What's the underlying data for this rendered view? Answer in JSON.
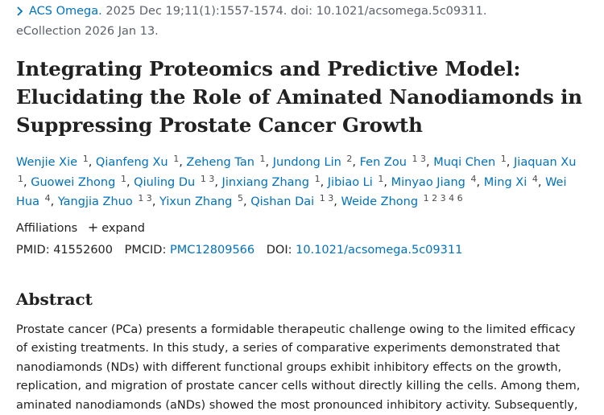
{
  "citation": {
    "journal": "ACS Omega.",
    "line1_rest": " 2025 Dec 19;11(1):1557-1574. doi: 10.1021/acsomega.5c09311.",
    "line2": "eCollection 2026 Jan 13."
  },
  "title": "Integrating Proteomics and Predictive Model: Elucidating the Role of Aminated Nanodiamonds in Suppressing Prostate Cancer Growth",
  "authors": [
    {
      "name": "Wenjie Xie",
      "sup": "1"
    },
    {
      "name": "Qianfeng Xu",
      "sup": "1"
    },
    {
      "name": "Zeheng Tan",
      "sup": "1"
    },
    {
      "name": "Jundong Lin",
      "sup": "2"
    },
    {
      "name": "Fen Zou",
      "sup": "1 3"
    },
    {
      "name": "Muqi Chen",
      "sup": "1"
    },
    {
      "name": "Jiaquan Xu",
      "sup": "1"
    },
    {
      "name": "Guowei Zhong",
      "sup": "1"
    },
    {
      "name": "Qiuling Du",
      "sup": "1 3"
    },
    {
      "name": "Jinxiang Zhang",
      "sup": "1"
    },
    {
      "name": "Jibiao Li",
      "sup": "1"
    },
    {
      "name": "Minyao Jiang",
      "sup": "4"
    },
    {
      "name": "Ming Xi",
      "sup": "4"
    },
    {
      "name": "Wei Hua",
      "sup": "4"
    },
    {
      "name": "Yangjia Zhuo",
      "sup": "1 3"
    },
    {
      "name": "Yixun Zhang",
      "sup": "5"
    },
    {
      "name": "Qishan Dai",
      "sup": "1 3"
    },
    {
      "name": "Weide Zhong",
      "sup": "1 2 3 4 6"
    }
  ],
  "affiliations": {
    "label": "Affiliations",
    "toggle": "expand"
  },
  "ids": {
    "pmid_label": "PMID:",
    "pmid": "41552600",
    "pmcid_label": "PMCID:",
    "pmcid": "PMC12809566",
    "doi_label": "DOI:",
    "doi": "10.1021/acsomega.5c09311"
  },
  "abstract": {
    "heading": "Abstract",
    "text": "Prostate cancer (PCa) presents a formidable therapeutic challenge owing to the limited efficacy of existing treatments. In this study, a series of comparative experiments demonstrated that nanodiamonds (NDs) with different functional groups exhibit inhibitory effects on the growth, replication, and migration of prostate cancer cells without directly killing the cells. Among them, aminated nanodiamonds (aNDs) showed the most pronounced inhibitory activity. Subsequently,"
  }
}
